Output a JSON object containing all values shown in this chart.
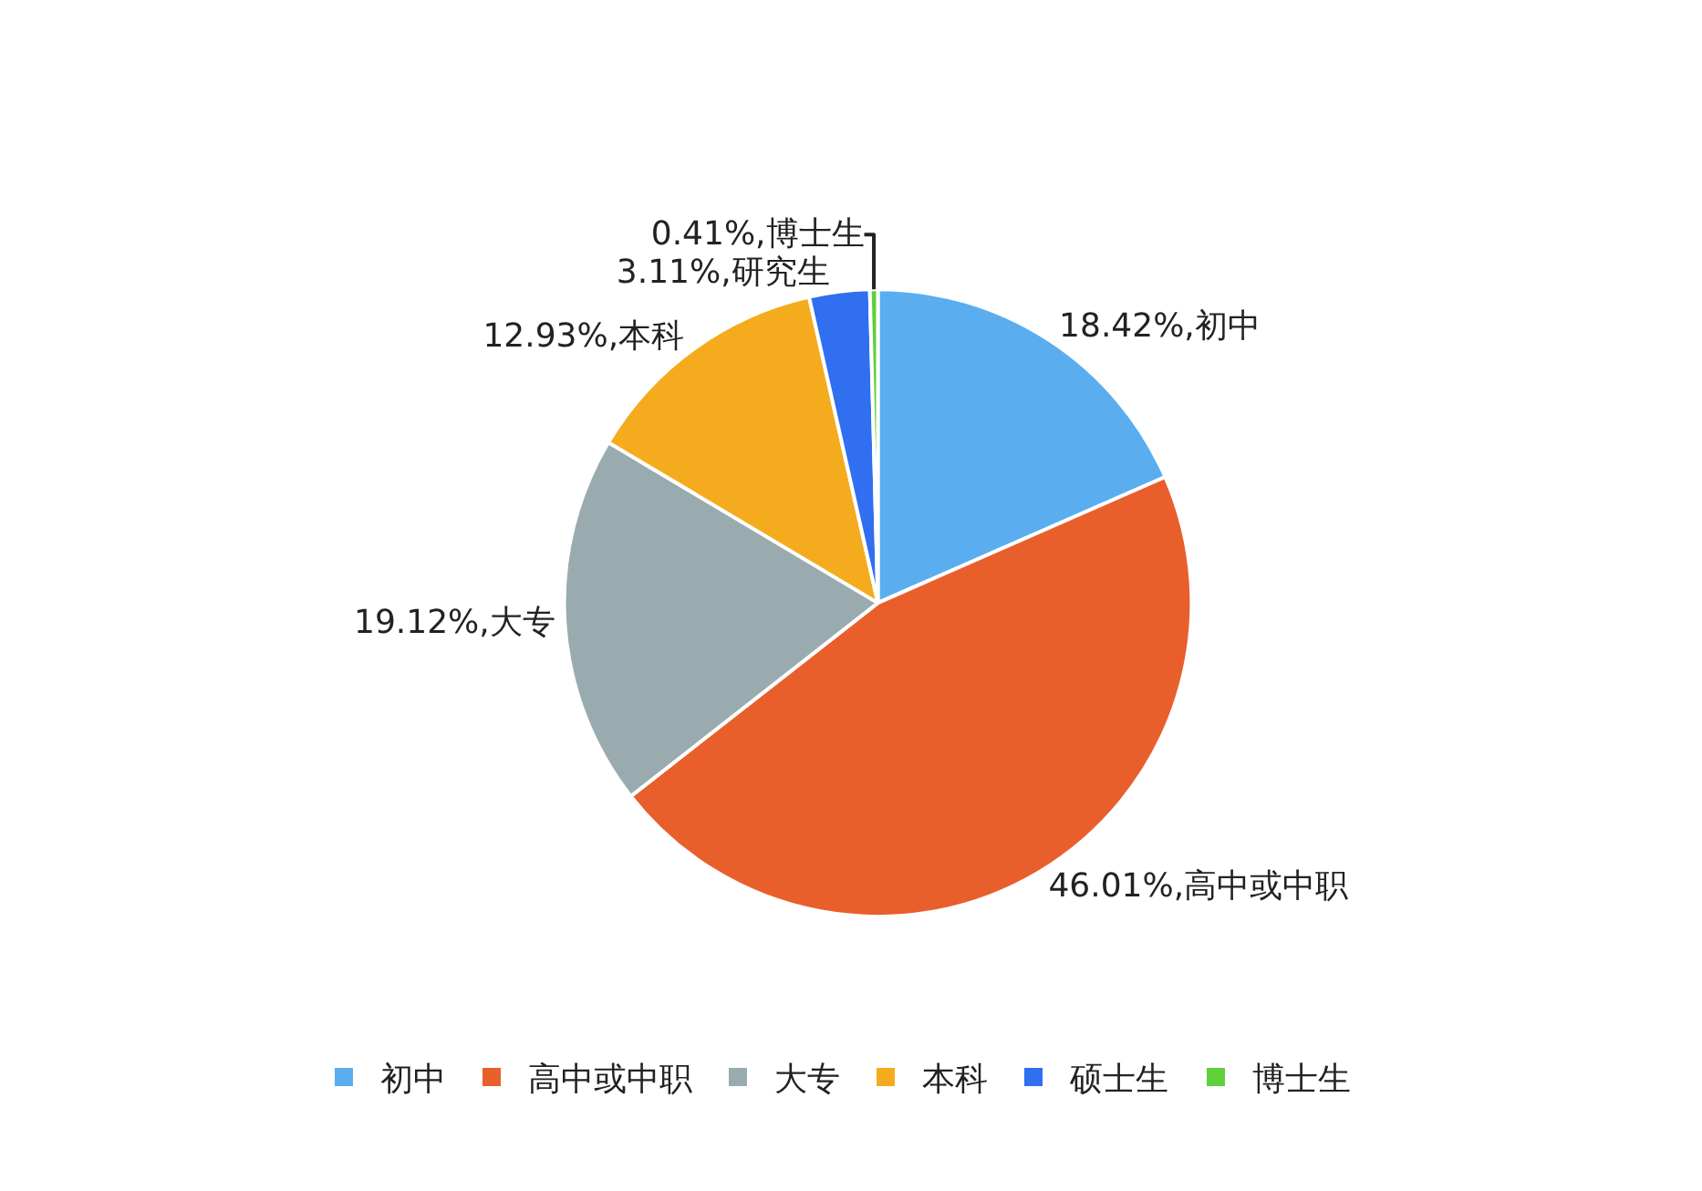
{
  "chart_data": {
    "type": "pie",
    "categories": [
      "初中",
      "高中或中职",
      "大专",
      "本科",
      "硕士生",
      "博士生"
    ],
    "values": [
      18.42,
      46.01,
      19.12,
      12.93,
      3.11,
      0.41
    ],
    "colors": [
      "#5aaef0",
      "#e95f2c",
      "#9aabb0",
      "#f4ac1e",
      "#2f6ff0",
      "#5fd03a"
    ],
    "value_labels": [
      "18.42%,初中",
      "46.01%,高中或中职",
      "19.12%,大专",
      "12.93%,本科",
      "3.11%,研究生",
      "0.41%,博士生"
    ],
    "legend": "bottom"
  }
}
